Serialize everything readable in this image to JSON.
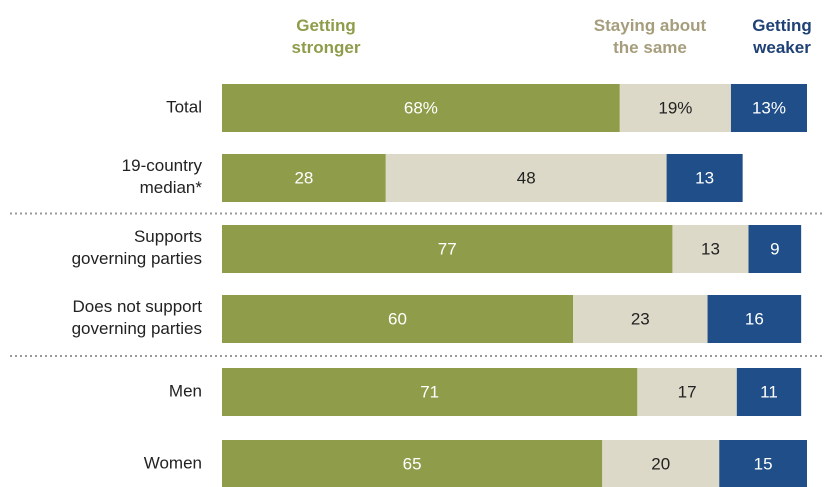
{
  "chart_data": {
    "type": "stacked-bar",
    "categories": [
      "Total",
      "19-country\nmedian*",
      "Supports\ngoverning parties",
      "Does not support\ngoverning parties",
      "Men",
      "Women"
    ],
    "series": [
      {
        "name": "Getting\nstronger",
        "color": "#8f9c4a",
        "label_color": "#8f9c4a",
        "text_color": "#ffffff",
        "values": [
          68,
          28,
          77,
          60,
          71,
          65
        ],
        "value_labels": [
          "68%",
          "28",
          "77",
          "60",
          "71",
          "65"
        ]
      },
      {
        "name": "Staying about\nthe same",
        "color": "#dcd9c9",
        "label_color": "#a59d7c",
        "text_color": "#222222",
        "values": [
          19,
          48,
          13,
          23,
          17,
          20
        ],
        "value_labels": [
          "19%",
          "48",
          "13",
          "23",
          "17",
          "20"
        ]
      },
      {
        "name": "Getting\nweaker",
        "color": "#1f4e89",
        "label_color": "#1f4175",
        "text_color": "#ffffff",
        "values": [
          13,
          13,
          9,
          16,
          11,
          15
        ],
        "value_labels": [
          "13%",
          "13",
          "9",
          "16",
          "11",
          "15"
        ]
      }
    ]
  }
}
